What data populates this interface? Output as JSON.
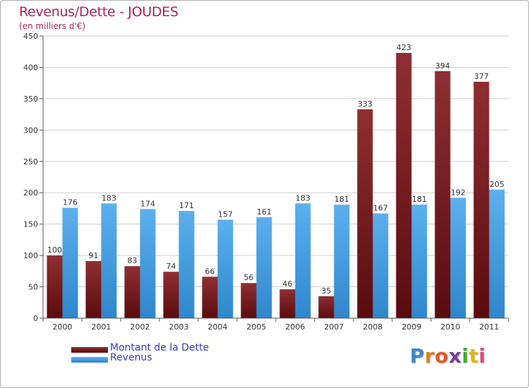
{
  "colors": {
    "dette": "#7a1a1d",
    "revenus": "#4aa2e3",
    "title": "#b0245a",
    "legend_text": "#3c3cc8"
  },
  "header": {
    "title": "Revenus/Dette - JOUDES",
    "subtitle": "(en milliers d'€)"
  },
  "logo": {
    "text": "Proxiti",
    "letter_colors": [
      "#3e86c6",
      "#e27d1e",
      "#e8572a",
      "#7a3fa0",
      "#4aa63a",
      "#e0b81c",
      "#e04a7c"
    ]
  },
  "chart_data": {
    "type": "bar",
    "title": "Revenus/Dette - JOUDES",
    "subtitle": "(en milliers d'€)",
    "categories": [
      "2000",
      "2001",
      "2002",
      "2003",
      "2004",
      "2005",
      "2006",
      "2007",
      "2008",
      "2009",
      "2010",
      "2011"
    ],
    "series": [
      {
        "name": "Montant de la Dette",
        "values": [
          100,
          91,
          83,
          74,
          66,
          56,
          46,
          35,
          333,
          423,
          394,
          377
        ]
      },
      {
        "name": "Revenus",
        "values": [
          176,
          183,
          174,
          171,
          157,
          161,
          183,
          181,
          167,
          181,
          192,
          205
        ]
      }
    ],
    "ylim": [
      0,
      450
    ],
    "yticks": [
      0,
      50,
      100,
      150,
      200,
      250,
      300,
      350,
      400,
      450
    ],
    "grid": true,
    "legend": "bottom-left"
  }
}
